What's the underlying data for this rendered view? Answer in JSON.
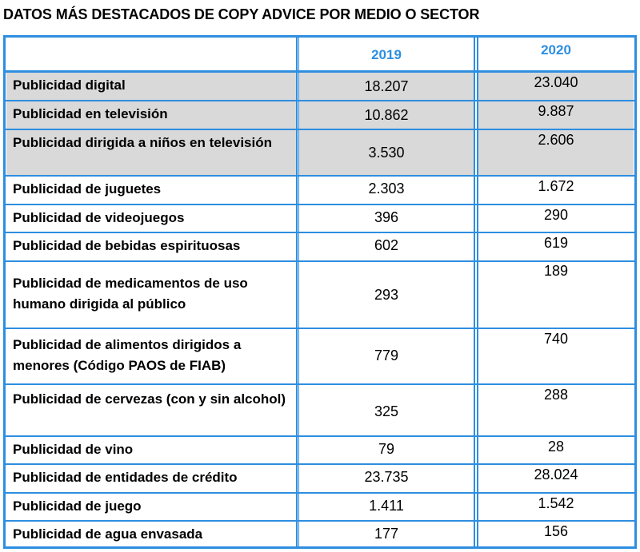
{
  "title": "DATOS MÁS DESTACADOS DE COPY ADVICE POR MEDIO O SECTOR",
  "header": {
    "col1": "",
    "col2": "2019",
    "col3": "2020"
  },
  "rows": [
    {
      "label": "Publicidad digital",
      "y2019": "18.207",
      "y2020": "23.040"
    },
    {
      "label": "Publicidad en televisión",
      "y2019": "10.862",
      "y2020": "9.887"
    },
    {
      "label": "Publicidad dirigida a niños en televisión",
      "y2019": "3.530",
      "y2020": "2.606"
    },
    {
      "label": "Publicidad de juguetes",
      "y2019": "2.303",
      "y2020": "1.672"
    },
    {
      "label": "Publicidad de videojuegos",
      "y2019": "396",
      "y2020": "290"
    },
    {
      "label": "Publicidad de bebidas espirituosas",
      "y2019": "602",
      "y2020": "619"
    },
    {
      "label": "Publicidad de medicamentos de uso humano dirigida al público",
      "y2019": "293",
      "y2020": "189"
    },
    {
      "label": "Publicidad de alimentos dirigidos a menores (Código PAOS de FIAB)",
      "y2019": "779",
      "y2020": "740"
    },
    {
      "label": "Publicidad de cervezas (con y sin alcohol)",
      "y2019": "325",
      "y2020": "288"
    },
    {
      "label": "Publicidad de vino",
      "y2019": "79",
      "y2020": "28"
    },
    {
      "label": "Publicidad de entidades de crédito",
      "y2019": "23.735",
      "y2020": "28.024"
    },
    {
      "label": "Publicidad de juego",
      "y2019": "1.411",
      "y2020": "1.542"
    },
    {
      "label": "Publicidad de agua envasada",
      "y2019": "177",
      "y2020": "156"
    }
  ]
}
